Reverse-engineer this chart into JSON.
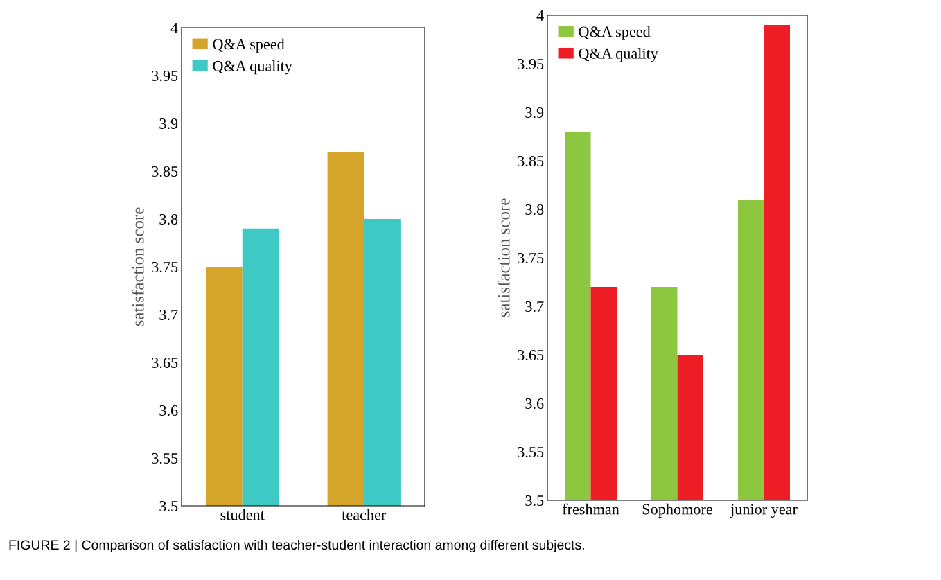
{
  "chart_data": [
    {
      "type": "bar",
      "categories": [
        "student",
        "teacher"
      ],
      "ylabel": "satisfaction score",
      "ylim": [
        3.5,
        4
      ],
      "yticks": [
        3.5,
        3.55,
        3.6,
        3.65,
        3.7,
        3.75,
        3.8,
        3.85,
        3.9,
        3.95,
        4
      ],
      "legend": "top left",
      "grid": false,
      "series": [
        {
          "name": "Q&A speed",
          "color": "#d4a52a",
          "values": [
            3.75,
            3.87
          ]
        },
        {
          "name": "Q&A quality",
          "color": "#3fc9c4",
          "values": [
            3.79,
            3.8
          ]
        }
      ],
      "annotations": [
        "FIGURE 2 | Comparison of satisfaction with teacher-student interaction among different subjects."
      ]
    },
    {
      "type": "bar",
      "categories": [
        "freshman",
        "Sophomore",
        "junior year"
      ],
      "ylabel": "satisfaction score",
      "ylim": [
        3.5,
        4
      ],
      "yticks": [
        3.5,
        3.55,
        3.6,
        3.65,
        3.7,
        3.75,
        3.8,
        3.85,
        3.9,
        3.95,
        4
      ],
      "legend": "top left",
      "grid": false,
      "series": [
        {
          "name": "Q&A speed",
          "color": "#8dc63f",
          "values": [
            3.88,
            3.72,
            3.81
          ]
        },
        {
          "name": "Q&A quality",
          "color": "#ee1c25",
          "values": [
            3.72,
            3.65,
            3.99
          ]
        }
      ]
    }
  ]
}
